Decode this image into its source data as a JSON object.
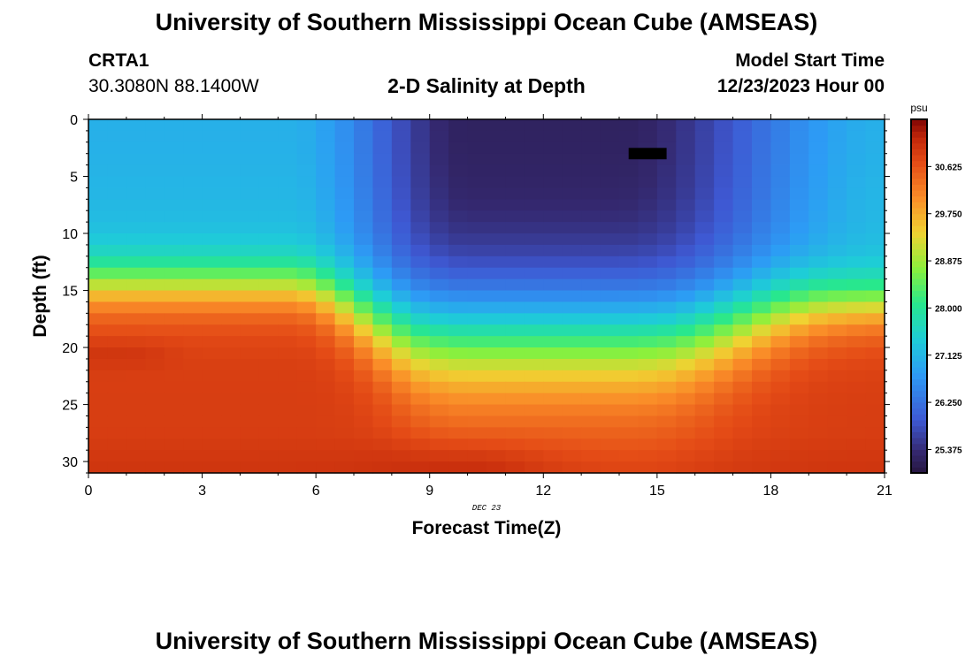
{
  "header": {
    "title": "University of Southern Mississippi Ocean Cube (AMSEAS)",
    "station": "CRTA1",
    "coords": "30.3080N  88.1400W",
    "subtitle": "2-D Salinity at Depth",
    "model_start_label": "Model Start Time",
    "model_start_value": "12/23/2023 Hour 00"
  },
  "footer": {
    "title": "University of Southern Mississippi Ocean Cube (AMSEAS)"
  },
  "chart_data": {
    "type": "heatmap",
    "title": "2-D Salinity at Depth",
    "xlabel": "Forecast Time(Z)",
    "ylabel": "Depth (ft)",
    "date_label": "DEC 23",
    "xlim": [
      0,
      21
    ],
    "ylim": [
      0,
      31
    ],
    "x_ticks": [
      0,
      3,
      6,
      9,
      12,
      15,
      18,
      21
    ],
    "y_ticks": [
      0,
      5,
      10,
      15,
      20,
      25,
      30
    ],
    "x_tick_labels": [
      "0",
      "3",
      "6",
      "9",
      "12",
      "15",
      "18",
      "21"
    ],
    "y_tick_labels": [
      "0",
      "5",
      "10",
      "15",
      "20",
      "25",
      "30"
    ],
    "colorbar": {
      "unit": "psu",
      "min": 24.94,
      "max": 31.5,
      "ticks": [
        25.375,
        26.25,
        27.125,
        28.0,
        28.875,
        29.75,
        30.625
      ],
      "tick_labels": [
        "25.375",
        "26.250",
        "27.125",
        "28.000",
        "28.875",
        "29.750",
        "30.625"
      ]
    },
    "grid": {
      "x_step_hours": 0.5,
      "depth_step_ft": 1,
      "n_x": 42,
      "n_depth": 31,
      "description": "salinity (psu) at each forecast hour and depth"
    },
    "features": {
      "surface_fresh_min_psu": 25.2,
      "halocline_depth_start_ft": 15,
      "halocline_depth_end_ft": 21,
      "deep_max_psu": 31.4,
      "missing_cell": {
        "hour": 14.75,
        "depth_ft": 3
      }
    }
  }
}
